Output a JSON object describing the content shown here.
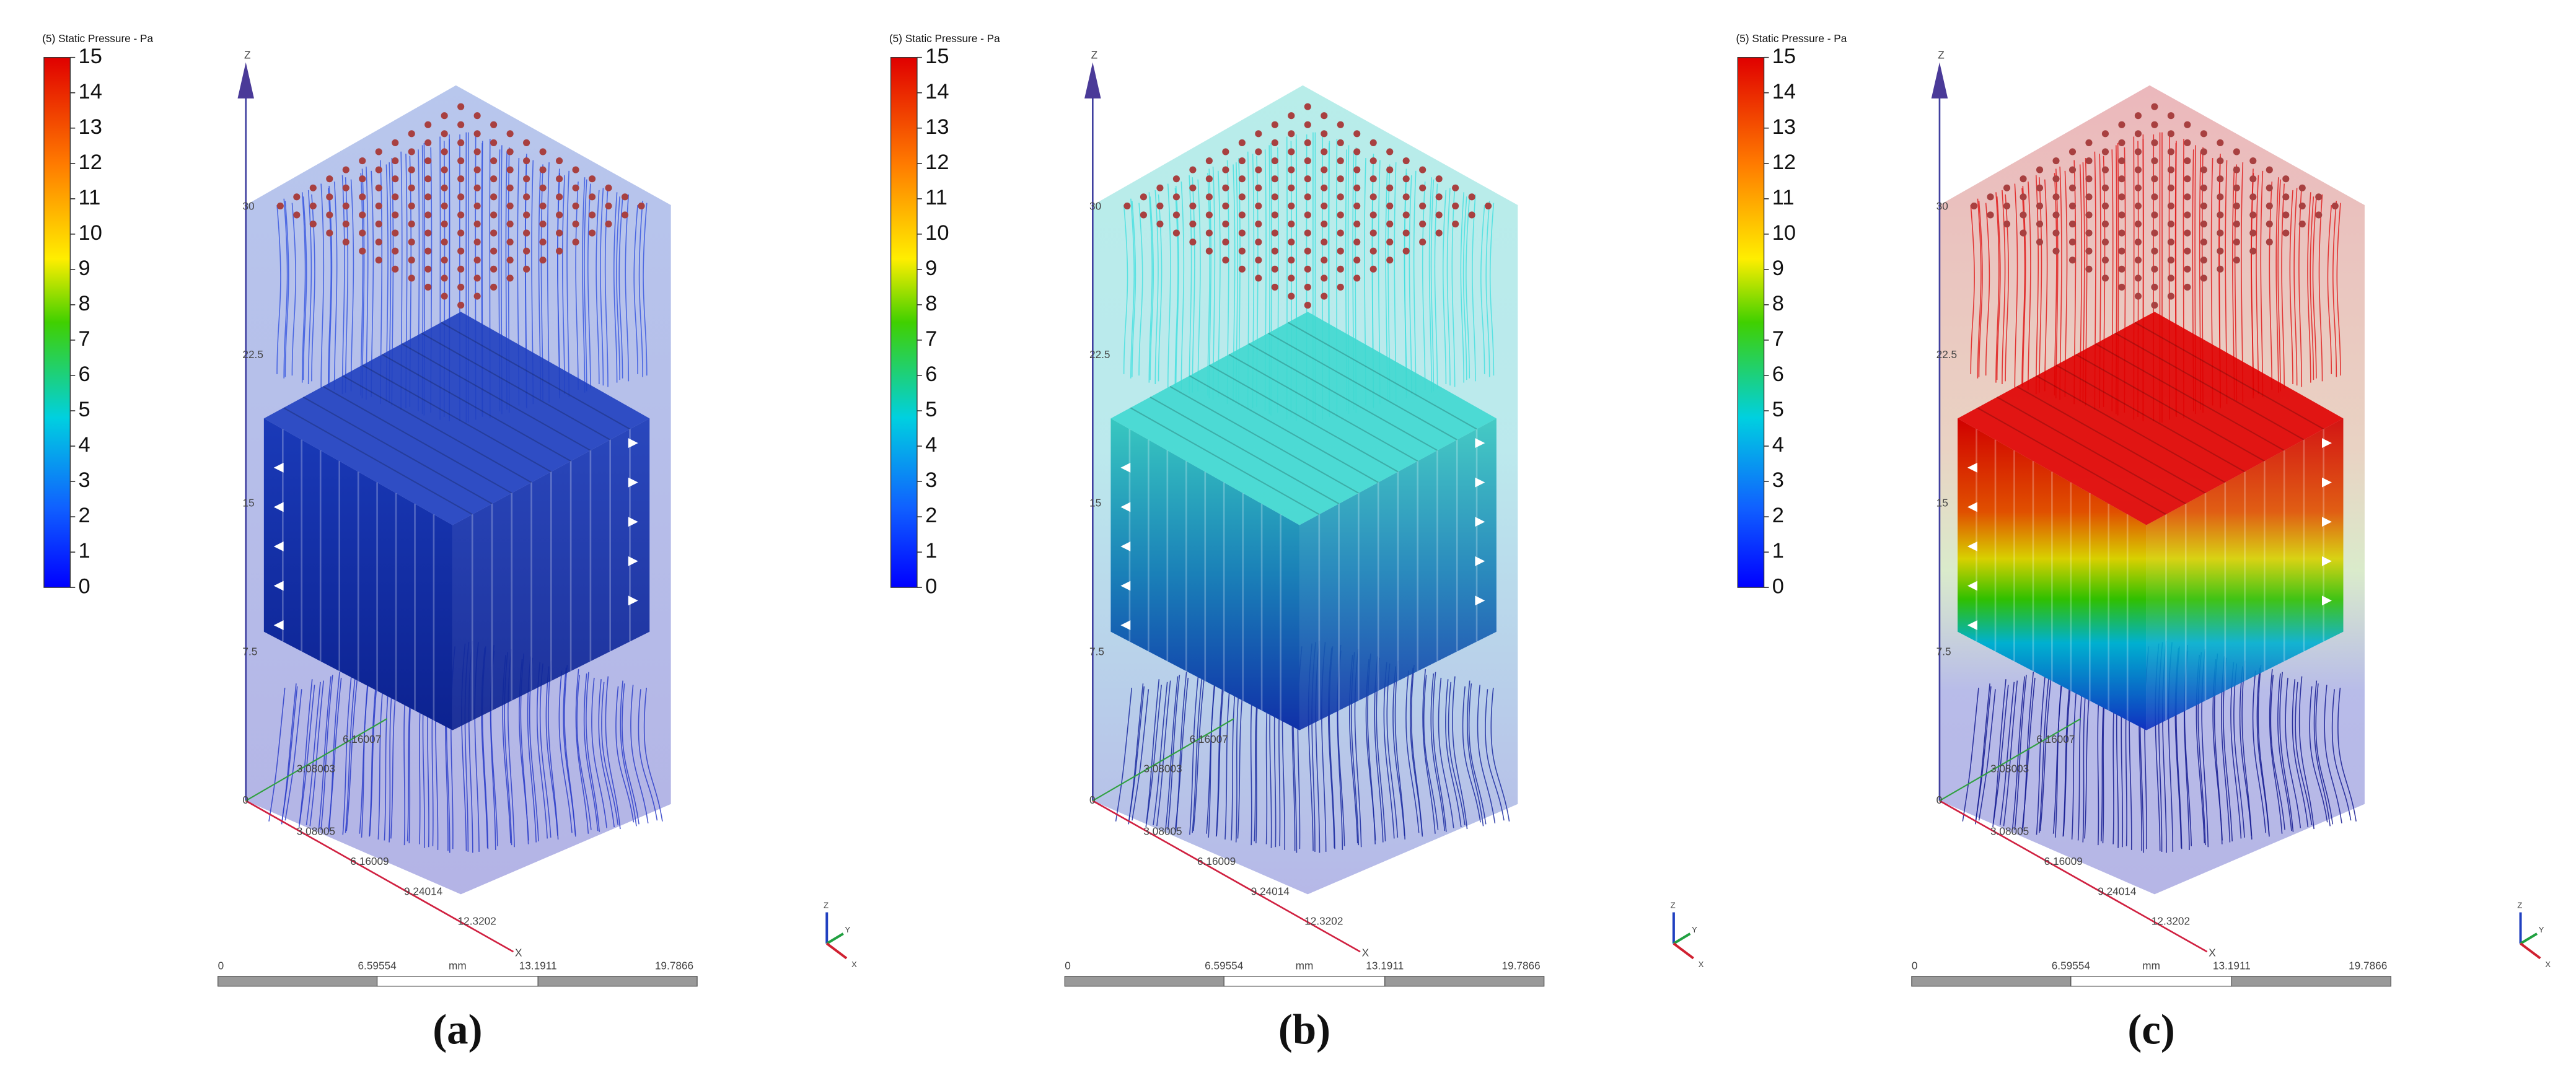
{
  "panels": [
    {
      "label": "(a)",
      "colorbar": {
        "title": "(5) Static Pressure - Pa",
        "ticks": [
          15,
          14,
          13,
          12,
          11,
          10,
          9,
          8,
          7,
          6,
          5,
          4,
          3,
          2,
          1,
          0
        ]
      },
      "z_labels": [
        "30",
        "22.5",
        "15",
        "7.5",
        "0"
      ],
      "x_labels": [
        "3.08005",
        "6.16009",
        "9.24014",
        "12.3202"
      ],
      "y_labels": [
        "3.08003",
        "6.16007"
      ],
      "axis_names": [
        "Z",
        "X"
      ],
      "triad": [
        "Z",
        "Y",
        "X"
      ],
      "scale_bar": {
        "labels": [
          "0",
          "6.59554",
          "13.1911",
          "19.7866"
        ],
        "unit": "mm"
      }
    },
    {
      "label": "(b)",
      "colorbar": {
        "title": "(5) Static Pressure - Pa",
        "ticks": [
          15,
          14,
          13,
          12,
          11,
          10,
          9,
          8,
          7,
          6,
          5,
          4,
          3,
          2,
          1,
          0
        ]
      },
      "z_labels": [
        "30",
        "22.5",
        "15",
        "7.5",
        "0"
      ],
      "x_labels": [
        "3.08005",
        "6.16009",
        "9.24014",
        "12.3202"
      ],
      "y_labels": [
        "3.08003",
        "6.16007"
      ],
      "axis_names": [
        "Z",
        "X"
      ],
      "triad": [
        "Z",
        "Y",
        "X"
      ],
      "scale_bar": {
        "labels": [
          "0",
          "6.59554",
          "13.1911",
          "19.7866"
        ],
        "unit": "mm"
      }
    },
    {
      "label": "(c)",
      "colorbar": {
        "title": "(5) Static Pressure - Pa",
        "ticks": [
          15,
          14,
          13,
          12,
          11,
          10,
          9,
          8,
          7,
          6,
          5,
          4,
          3,
          2,
          1,
          0
        ]
      },
      "z_labels": [
        "30",
        "22.5",
        "15",
        "7.5",
        "0"
      ],
      "x_labels": [
        "3.08005",
        "6.16009",
        "9.24014",
        "12.3202"
      ],
      "y_labels": [
        "3.08003",
        "6.16007"
      ],
      "axis_names": [
        "Z",
        "X"
      ],
      "triad": [
        "Z",
        "Y",
        "X"
      ],
      "scale_bar": {
        "labels": [
          "0",
          "6.59554",
          "13.1911",
          "19.7866"
        ],
        "unit": "mm"
      }
    }
  ]
}
